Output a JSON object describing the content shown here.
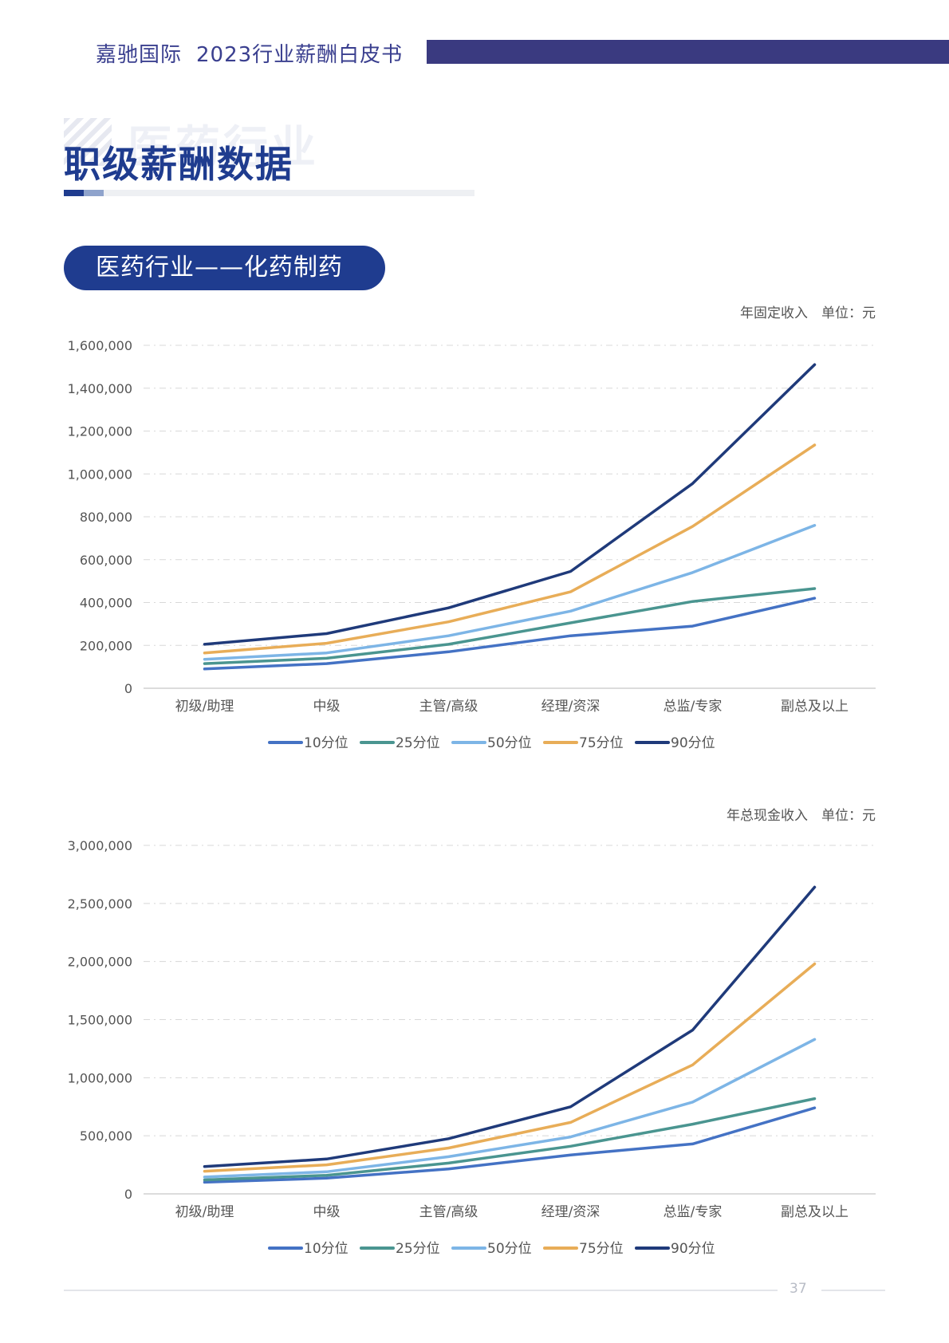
{
  "header": {
    "company": "嘉驰国际",
    "report": "2023行业薪酬白皮书"
  },
  "section": {
    "watermark": "医药行业",
    "title": "职级薪酬数据"
  },
  "subsection": {
    "label": "医药行业——化药制药"
  },
  "colors": {
    "brand": "#1f3c8f",
    "header_bar": "#3a3a80",
    "p10": "#4472c4",
    "p25": "#4a9590",
    "p50": "#7db5e6",
    "p75": "#e8ad58",
    "p90": "#1f3a7a"
  },
  "chart_data": [
    {
      "type": "line",
      "title": "年固定收入",
      "unit_label": "单位：元",
      "ylim": [
        0,
        1600000
      ],
      "yticks": [
        0,
        200000,
        400000,
        600000,
        800000,
        1000000,
        1200000,
        1400000,
        1600000
      ],
      "ytick_labels": [
        "0",
        "200,000",
        "400,000",
        "600,000",
        "800,000",
        "1,000,000",
        "1,200,000",
        "1,400,000",
        "1,600,000"
      ],
      "grid": true,
      "legend_position": "bottom",
      "categories": [
        "初级/助理",
        "中级",
        "主管/高级",
        "经理/资深",
        "总监/专家",
        "副总及以上"
      ],
      "series": [
        {
          "name": "10分位",
          "color": "#4472c4",
          "values": [
            90000,
            115000,
            170000,
            245000,
            290000,
            420000
          ]
        },
        {
          "name": "25分位",
          "color": "#4a9590",
          "values": [
            115000,
            140000,
            205000,
            305000,
            405000,
            465000
          ]
        },
        {
          "name": "50分位",
          "color": "#7db5e6",
          "values": [
            135000,
            165000,
            245000,
            360000,
            540000,
            760000
          ]
        },
        {
          "name": "75分位",
          "color": "#e8ad58",
          "values": [
            165000,
            210000,
            310000,
            450000,
            755000,
            1135000
          ]
        },
        {
          "name": "90分位",
          "color": "#1f3a7a",
          "values": [
            205000,
            255000,
            375000,
            545000,
            955000,
            1510000
          ]
        }
      ]
    },
    {
      "type": "line",
      "title": "年总现金收入",
      "unit_label": "单位：元",
      "ylim": [
        0,
        3000000
      ],
      "yticks": [
        0,
        500000,
        1000000,
        1500000,
        2000000,
        2500000,
        3000000
      ],
      "ytick_labels": [
        "0",
        "500,000",
        "1,000,000",
        "1,500,000",
        "2,000,000",
        "2,500,000",
        "3,000,000"
      ],
      "grid": true,
      "legend_position": "bottom",
      "categories": [
        "初级/助理",
        "中级",
        "主管/高级",
        "经理/资深",
        "总监/专家",
        "副总及以上"
      ],
      "series": [
        {
          "name": "10分位",
          "color": "#4472c4",
          "values": [
            100000,
            135000,
            215000,
            335000,
            430000,
            740000
          ]
        },
        {
          "name": "25分位",
          "color": "#4a9590",
          "values": [
            120000,
            160000,
            265000,
            410000,
            600000,
            820000
          ]
        },
        {
          "name": "50分位",
          "color": "#7db5e6",
          "values": [
            145000,
            190000,
            320000,
            490000,
            790000,
            1330000
          ]
        },
        {
          "name": "75分位",
          "color": "#e8ad58",
          "values": [
            195000,
            250000,
            395000,
            615000,
            1110000,
            1980000
          ]
        },
        {
          "name": "90分位",
          "color": "#1f3a7a",
          "values": [
            235000,
            300000,
            475000,
            750000,
            1410000,
            2640000
          ]
        }
      ]
    }
  ],
  "footer": {
    "page_number": "37"
  }
}
